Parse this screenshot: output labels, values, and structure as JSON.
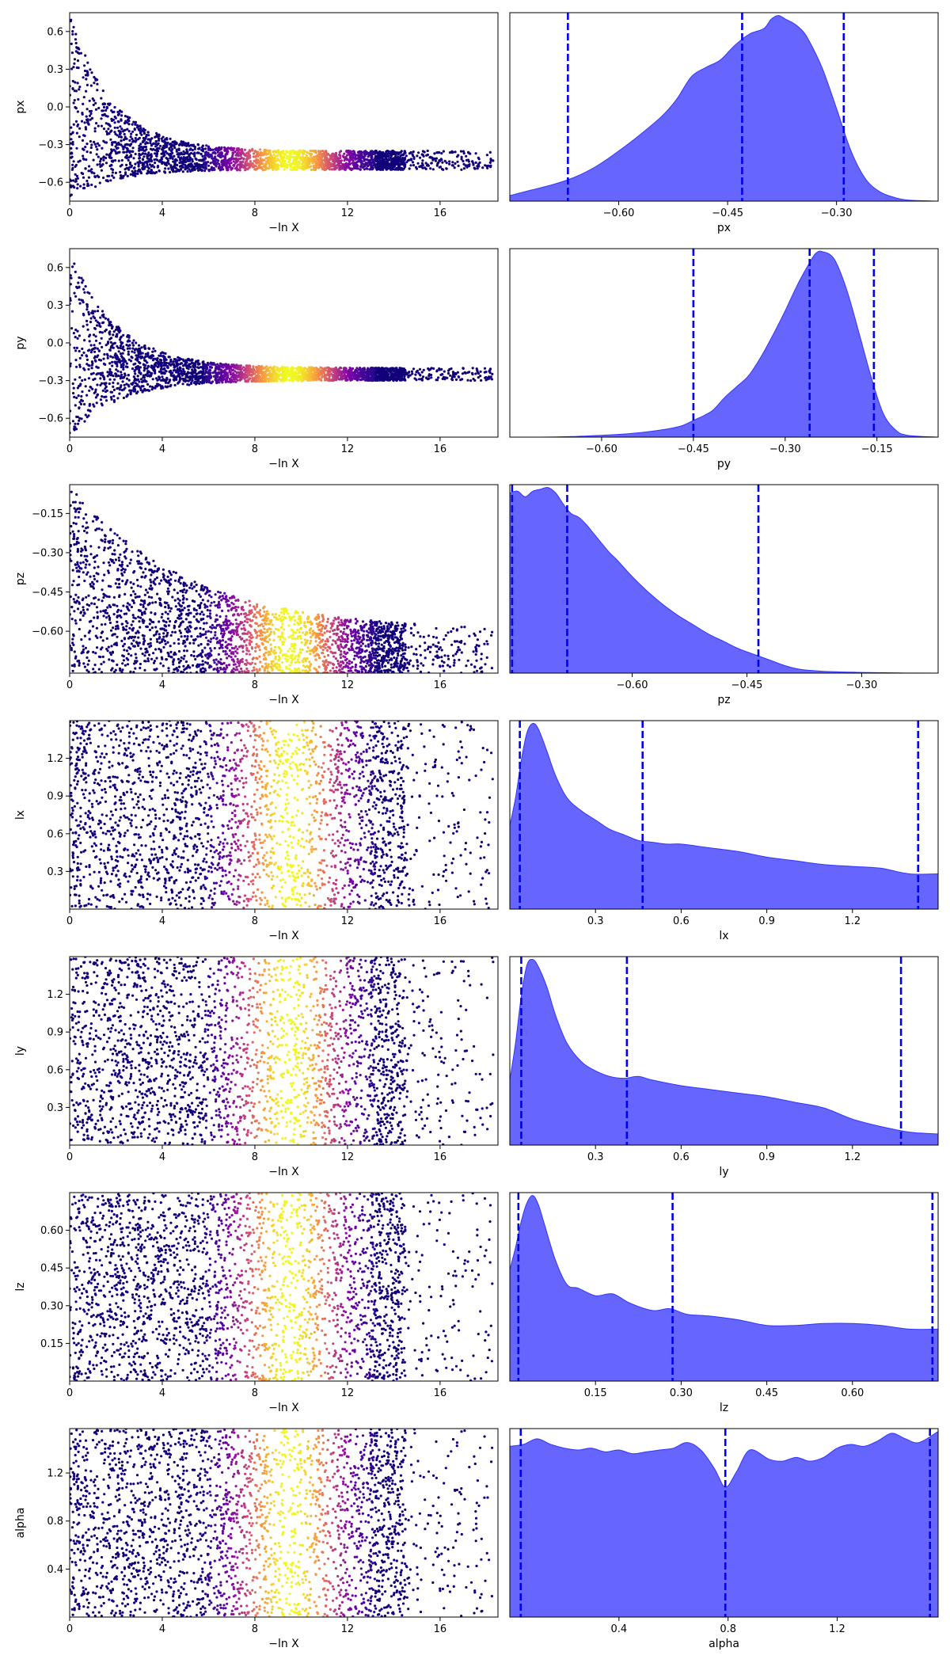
{
  "figure_title": "",
  "colors": {
    "kde_fill": "#6666ff",
    "kde_edge": "#3333ff",
    "quantile_line": "#0000ee",
    "scatter_low": "#12007a",
    "scatter_mid": "#c53a8f",
    "scatter_high": "#fbff35"
  },
  "chart_data": [
    {
      "type": "scatter",
      "param": "px",
      "xlabel": "−ln X",
      "ylabel": "px",
      "xlim": [
        0,
        18.5
      ],
      "xticks": [
        0,
        4,
        8,
        12,
        16
      ],
      "ylim": [
        -0.75,
        0.75
      ],
      "yticks": [
        0.6,
        0.3,
        0.0,
        -0.3,
        -0.6
      ],
      "ytick_labels": [
        "0.6",
        "0.3",
        "0.0",
        "−0.3",
        "−0.6"
      ],
      "envelope": {
        "floor_start": -0.75,
        "floor_end": -0.5,
        "ceil_start": 0.75,
        "ceil_end": -0.35,
        "decay": 0.55
      },
      "colormap": "plasma, weight peaks near −ln X = 9.5"
    },
    {
      "type": "area",
      "param": "px",
      "xlabel": "px",
      "xlim": [
        -0.75,
        -0.16
      ],
      "xticks": [
        -0.6,
        -0.45,
        -0.3
      ],
      "xtick_labels": [
        "−0.60",
        "−0.45",
        "−0.30"
      ],
      "quantiles": [
        -0.67,
        -0.43,
        -0.29
      ],
      "density": {
        "x": [
          -0.75,
          -0.72,
          -0.69,
          -0.66,
          -0.63,
          -0.6,
          -0.57,
          -0.54,
          -0.52,
          -0.5,
          -0.48,
          -0.46,
          -0.44,
          -0.42,
          -0.4,
          -0.39,
          -0.38,
          -0.37,
          -0.36,
          -0.35,
          -0.34,
          -0.32,
          -0.3,
          -0.28,
          -0.26,
          -0.24,
          -0.22,
          -0.2,
          -0.16
        ],
        "y": [
          0.03,
          0.06,
          0.09,
          0.13,
          0.19,
          0.27,
          0.36,
          0.46,
          0.55,
          0.67,
          0.72,
          0.76,
          0.84,
          0.9,
          0.93,
          0.98,
          1.0,
          0.98,
          0.96,
          0.93,
          0.88,
          0.72,
          0.5,
          0.27,
          0.12,
          0.05,
          0.02,
          0.005,
          0.0
        ]
      }
    },
    {
      "type": "scatter",
      "param": "py",
      "xlabel": "−ln X",
      "ylabel": "py",
      "xlim": [
        0,
        18.5
      ],
      "xticks": [
        0,
        4,
        8,
        12,
        16
      ],
      "ylim": [
        -0.75,
        0.75
      ],
      "yticks": [
        0.6,
        0.3,
        0.0,
        -0.3,
        -0.6
      ],
      "ytick_labels": [
        "0.6",
        "0.3",
        "0.0",
        "−0.3",
        "−0.6"
      ],
      "envelope": {
        "floor_start": -0.75,
        "floor_end": -0.3,
        "ceil_start": 0.75,
        "ceil_end": -0.2,
        "decay": 0.5
      },
      "colormap": "plasma, weight peaks near −ln X = 9.5"
    },
    {
      "type": "area",
      "param": "py",
      "xlabel": "py",
      "xlim": [
        -0.75,
        -0.05
      ],
      "xticks": [
        -0.6,
        -0.45,
        -0.3,
        -0.15
      ],
      "xtick_labels": [
        "−0.60",
        "−0.45",
        "−0.30",
        "−0.15"
      ],
      "quantiles": [
        -0.45,
        -0.26,
        -0.155
      ],
      "density": {
        "x": [
          -0.75,
          -0.7,
          -0.65,
          -0.6,
          -0.55,
          -0.5,
          -0.47,
          -0.45,
          -0.42,
          -0.4,
          -0.38,
          -0.36,
          -0.34,
          -0.32,
          -0.3,
          -0.28,
          -0.26,
          -0.25,
          -0.24,
          -0.22,
          -0.2,
          -0.18,
          -0.16,
          -0.14,
          -0.12,
          -0.1,
          -0.05
        ],
        "y": [
          0.0,
          0.0,
          0.003,
          0.01,
          0.02,
          0.04,
          0.06,
          0.09,
          0.14,
          0.21,
          0.27,
          0.33,
          0.43,
          0.55,
          0.68,
          0.82,
          0.94,
          0.99,
          1.0,
          0.96,
          0.8,
          0.57,
          0.33,
          0.13,
          0.04,
          0.01,
          0.0
        ]
      }
    },
    {
      "type": "scatter",
      "param": "pz",
      "xlabel": "−ln X",
      "ylabel": "pz",
      "xlim": [
        0,
        18.5
      ],
      "xticks": [
        0,
        4,
        8,
        12,
        16
      ],
      "ylim": [
        -0.76,
        -0.04
      ],
      "yticks": [
        -0.15,
        -0.3,
        -0.45,
        -0.6
      ],
      "ytick_labels": [
        "−0.15",
        "−0.30",
        "−0.45",
        "−0.60"
      ],
      "envelope": {
        "floor_start": -0.76,
        "floor_end": -0.76,
        "ceil_start": -0.04,
        "ceil_end": -0.6,
        "decay": 0.2
      },
      "colormap": "plasma, weight peaks near −ln X = 9.5"
    },
    {
      "type": "area",
      "param": "pz",
      "xlabel": "pz",
      "xlim": [
        -0.76,
        -0.2
      ],
      "xticks": [
        -0.6,
        -0.45,
        -0.3
      ],
      "xtick_labels": [
        "−0.60",
        "−0.45",
        "−0.30"
      ],
      "quantiles": [
        -0.757,
        -0.685,
        -0.435
      ],
      "density": {
        "x": [
          -0.76,
          -0.75,
          -0.74,
          -0.73,
          -0.72,
          -0.71,
          -0.7,
          -0.69,
          -0.68,
          -0.67,
          -0.66,
          -0.65,
          -0.64,
          -0.63,
          -0.62,
          -0.6,
          -0.58,
          -0.56,
          -0.54,
          -0.52,
          -0.5,
          -0.48,
          -0.46,
          -0.44,
          -0.42,
          -0.4,
          -0.38,
          -0.35,
          -0.3,
          -0.25,
          -0.2
        ],
        "y": [
          0.97,
          0.98,
          0.95,
          0.98,
          0.99,
          1.0,
          0.97,
          0.91,
          0.86,
          0.84,
          0.8,
          0.75,
          0.7,
          0.65,
          0.61,
          0.52,
          0.44,
          0.37,
          0.31,
          0.26,
          0.21,
          0.17,
          0.13,
          0.1,
          0.07,
          0.04,
          0.02,
          0.01,
          0.004,
          0.001,
          0.0
        ]
      }
    },
    {
      "type": "scatter",
      "param": "lx",
      "xlabel": "−ln X",
      "ylabel": "lx",
      "xlim": [
        0,
        18.5
      ],
      "xticks": [
        0,
        4,
        8,
        12,
        16
      ],
      "ylim": [
        0.0,
        1.5
      ],
      "yticks": [
        1.2,
        0.9,
        0.6,
        0.3
      ],
      "ytick_labels": [
        "1.2",
        "0.9",
        "0.6",
        "0.3"
      ],
      "envelope": {
        "floor_start": 0.0,
        "floor_end": 0.0,
        "ceil_start": 1.5,
        "ceil_end": 1.5,
        "decay": 0.1
      },
      "colormap": "plasma, weight peaks near −ln X = 9.5"
    },
    {
      "type": "area",
      "param": "lx",
      "xlabel": "lx",
      "xlim": [
        0.0,
        1.5
      ],
      "xticks": [
        0.3,
        0.6,
        0.9,
        1.2
      ],
      "xtick_labels": [
        "0.3",
        "0.6",
        "0.9",
        "1.2"
      ],
      "quantiles": [
        0.035,
        0.465,
        1.43
      ],
      "density": {
        "x": [
          0.0,
          0.02,
          0.04,
          0.06,
          0.08,
          0.1,
          0.13,
          0.16,
          0.2,
          0.25,
          0.3,
          0.35,
          0.4,
          0.45,
          0.5,
          0.55,
          0.6,
          0.7,
          0.8,
          0.9,
          1.0,
          1.1,
          1.2,
          1.3,
          1.4,
          1.5
        ],
        "y": [
          0.45,
          0.6,
          0.8,
          0.95,
          1.0,
          0.97,
          0.85,
          0.72,
          0.6,
          0.53,
          0.48,
          0.43,
          0.4,
          0.37,
          0.36,
          0.35,
          0.35,
          0.33,
          0.31,
          0.28,
          0.26,
          0.24,
          0.23,
          0.22,
          0.19,
          0.19
        ]
      }
    },
    {
      "type": "scatter",
      "param": "ly",
      "xlabel": "−ln X",
      "ylabel": "ly",
      "xlim": [
        0,
        18.5
      ],
      "xticks": [
        0,
        4,
        8,
        12,
        16
      ],
      "ylim": [
        0.0,
        1.5
      ],
      "yticks": [
        1.2,
        0.9,
        0.6,
        0.3
      ],
      "ytick_labels": [
        "1.2",
        "0.9",
        "0.6",
        "0.3"
      ],
      "envelope": {
        "floor_start": 0.0,
        "floor_end": 0.0,
        "ceil_start": 1.5,
        "ceil_end": 1.5,
        "decay": 0.1
      },
      "colormap": "plasma, weight peaks near −ln X = 9.5"
    },
    {
      "type": "area",
      "param": "ly",
      "xlabel": "ly",
      "xlim": [
        0.0,
        1.5
      ],
      "xticks": [
        0.3,
        0.6,
        0.9,
        1.2
      ],
      "xtick_labels": [
        "0.3",
        "0.6",
        "0.9",
        "1.2"
      ],
      "quantiles": [
        0.04,
        0.41,
        1.37
      ],
      "density": {
        "x": [
          0.0,
          0.02,
          0.04,
          0.06,
          0.08,
          0.1,
          0.13,
          0.16,
          0.2,
          0.25,
          0.3,
          0.35,
          0.4,
          0.45,
          0.5,
          0.6,
          0.7,
          0.8,
          0.9,
          1.0,
          1.1,
          1.2,
          1.3,
          1.4,
          1.5
        ],
        "y": [
          0.35,
          0.55,
          0.8,
          0.97,
          1.0,
          0.96,
          0.85,
          0.7,
          0.55,
          0.45,
          0.4,
          0.37,
          0.36,
          0.37,
          0.35,
          0.32,
          0.3,
          0.28,
          0.26,
          0.23,
          0.2,
          0.14,
          0.1,
          0.07,
          0.06
        ]
      }
    },
    {
      "type": "scatter",
      "param": "lz",
      "xlabel": "−ln X",
      "ylabel": "lz",
      "xlim": [
        0,
        18.5
      ],
      "xticks": [
        0,
        4,
        8,
        12,
        16
      ],
      "ylim": [
        0.0,
        0.75
      ],
      "yticks": [
        0.6,
        0.45,
        0.3,
        0.15
      ],
      "ytick_labels": [
        "0.60",
        "0.45",
        "0.30",
        "0.15"
      ],
      "envelope": {
        "floor_start": 0.0,
        "floor_end": 0.0,
        "ceil_start": 0.75,
        "ceil_end": 0.75,
        "decay": 0.1
      },
      "colormap": "plasma, weight peaks near −ln X = 9.5"
    },
    {
      "type": "area",
      "param": "lz",
      "xlabel": "lz",
      "xlim": [
        0.0,
        0.75
      ],
      "xticks": [
        0.15,
        0.3,
        0.45,
        0.6
      ],
      "xtick_labels": [
        "0.15",
        "0.30",
        "0.45",
        "0.60"
      ],
      "quantiles": [
        0.015,
        0.285,
        0.74
      ],
      "density": {
        "x": [
          0.0,
          0.01,
          0.02,
          0.03,
          0.04,
          0.05,
          0.06,
          0.08,
          0.1,
          0.12,
          0.15,
          0.18,
          0.21,
          0.25,
          0.28,
          0.31,
          0.35,
          0.4,
          0.45,
          0.5,
          0.55,
          0.6,
          0.65,
          0.7,
          0.75
        ],
        "y": [
          0.6,
          0.72,
          0.86,
          0.96,
          1.0,
          0.95,
          0.85,
          0.65,
          0.52,
          0.5,
          0.46,
          0.47,
          0.42,
          0.38,
          0.39,
          0.36,
          0.35,
          0.33,
          0.3,
          0.3,
          0.31,
          0.31,
          0.3,
          0.28,
          0.28
        ]
      }
    },
    {
      "type": "scatter",
      "param": "alpha",
      "xlabel": "−ln X",
      "ylabel": "alpha",
      "xlim": [
        0,
        18.5
      ],
      "xticks": [
        0,
        4,
        8,
        12,
        16
      ],
      "ylim": [
        0.0,
        1.57
      ],
      "yticks": [
        1.2,
        0.8,
        0.4
      ],
      "ytick_labels": [
        "1.2",
        "0.8",
        "0.4"
      ],
      "envelope": {
        "floor_start": 0.0,
        "floor_end": 0.0,
        "ceil_start": 1.57,
        "ceil_end": 1.57,
        "decay": 0.1
      },
      "colormap": "plasma, weight peaks near −ln X = 9.5"
    },
    {
      "type": "area",
      "param": "alpha",
      "xlabel": "alpha",
      "xlim": [
        0.0,
        1.57
      ],
      "xticks": [
        0.4,
        0.8,
        1.2
      ],
      "xtick_labels": [
        "0.4",
        "0.8",
        "1.2"
      ],
      "quantiles": [
        0.04,
        0.79,
        1.54
      ],
      "density": {
        "x": [
          0.0,
          0.05,
          0.1,
          0.15,
          0.2,
          0.25,
          0.3,
          0.35,
          0.4,
          0.45,
          0.5,
          0.55,
          0.6,
          0.65,
          0.7,
          0.75,
          0.79,
          0.83,
          0.88,
          0.95,
          1.0,
          1.05,
          1.1,
          1.15,
          1.2,
          1.25,
          1.3,
          1.35,
          1.4,
          1.45,
          1.5,
          1.57
        ],
        "y": [
          0.92,
          0.93,
          0.96,
          0.93,
          0.91,
          0.9,
          0.91,
          0.89,
          0.9,
          0.88,
          0.89,
          0.9,
          0.91,
          0.94,
          0.9,
          0.8,
          0.7,
          0.78,
          0.9,
          0.85,
          0.84,
          0.86,
          0.84,
          0.86,
          0.91,
          0.93,
          0.92,
          0.95,
          0.99,
          0.96,
          0.94,
          1.0
        ]
      }
    }
  ]
}
